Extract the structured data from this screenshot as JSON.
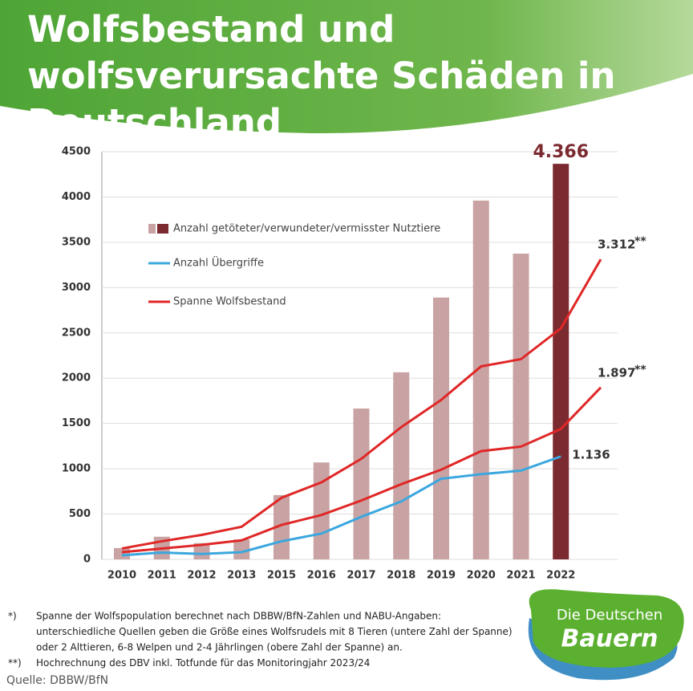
{
  "chart_data": {
    "type": "combo",
    "title": "Wolfsbestand und wolfsverursachte Schäden in Deutschland",
    "categories": [
      "2010",
      "2011",
      "2012",
      "2013",
      "2015",
      "2016",
      "2017",
      "2018",
      "2019",
      "2020",
      "2021",
      "2022",
      null
    ],
    "ylim": [
      0,
      4500
    ],
    "yticks": [
      0,
      500,
      1000,
      1500,
      2000,
      2500,
      3000,
      3500,
      4000,
      4500
    ],
    "grid": true,
    "projection_marker": "**",
    "series": [
      {
        "name": "Anzahl getöteter/verwundeter/vermisster Nutztiere",
        "type": "bar",
        "colors": [
          "#c9a3a3",
          "#c9a3a3",
          "#c9a3a3",
          "#c9a3a3",
          "#c9a3a3",
          "#c9a3a3",
          "#c9a3a3",
          "#c9a3a3",
          "#c9a3a3",
          "#c9a3a3",
          "#c9a3a3",
          "#7b2a30",
          null
        ],
        "values": [
          125,
          250,
          180,
          220,
          710,
          1070,
          1665,
          2065,
          2890,
          3960,
          3375,
          4366,
          null
        ],
        "value_labels": [
          null,
          null,
          null,
          null,
          null,
          null,
          null,
          null,
          null,
          null,
          null,
          "4.366",
          null
        ]
      },
      {
        "name": "Anzahl Übergriffe",
        "type": "line",
        "color": "#3ba7de",
        "values": [
          45,
          75,
          60,
          80,
          200,
          285,
          470,
          640,
          890,
          940,
          980,
          1136,
          null
        ],
        "value_labels": [
          null,
          null,
          null,
          null,
          null,
          null,
          null,
          null,
          null,
          null,
          null,
          "1.136",
          null
        ]
      },
      {
        "name": "Spanne Wolfsbestand",
        "type": "range",
        "color": "#e02727",
        "high": [
          120,
          200,
          270,
          360,
          680,
          850,
          1110,
          1460,
          1760,
          2130,
          2210,
          2550,
          3312
        ],
        "high_labels": [
          null,
          null,
          null,
          null,
          null,
          null,
          null,
          null,
          null,
          null,
          null,
          null,
          "3.312"
        ],
        "low": [
          80,
          120,
          160,
          210,
          380,
          490,
          650,
          830,
          990,
          1195,
          1245,
          1440,
          1897
        ],
        "low_labels": [
          null,
          null,
          null,
          null,
          null,
          null,
          null,
          null,
          null,
          null,
          null,
          null,
          "1.897"
        ]
      }
    ]
  },
  "notes": [
    {
      "marker": "*)",
      "lines": [
        "Spanne der Wolfspopulation berechnet nach DBBW/BfN-Zahlen und NABU-Angaben:",
        "unterschiedliche Quellen geben die Größe eines Wolfsrudels mit 8 Tieren (untere Zahl der Spanne)",
        "oder 2 Alttieren, 6-8 Welpen und 2-4 Jährlingen (obere Zahl der Spanne) an."
      ]
    },
    {
      "marker": "**)",
      "lines": [
        "Hochrechnung des DBV inkl. Totfunde für das Monitoringjahr 2023/24"
      ]
    }
  ],
  "source": "Quelle: DBBW/BfN",
  "logo": {
    "line1": "Die Deutschen",
    "line2": "Bauern"
  }
}
